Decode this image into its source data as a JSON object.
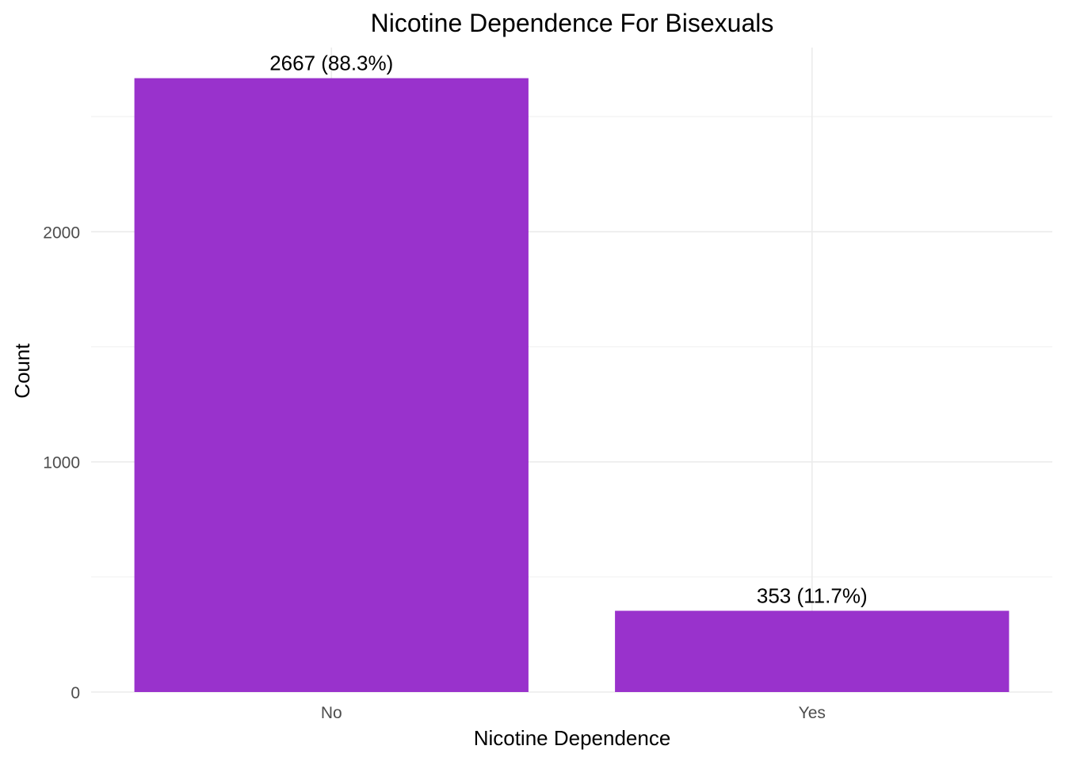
{
  "chart_data": {
    "type": "bar",
    "title": "Nicotine Dependence For Bisexuals",
    "xlabel": "Nicotine Dependence",
    "ylabel": "Count",
    "categories": [
      "No",
      "Yes"
    ],
    "values": [
      2667,
      353
    ],
    "data_labels": [
      "2667 (88.3%)",
      "353 (11.7%)"
    ],
    "ylim": [
      0,
      2800
    ],
    "y_ticks": [
      0,
      1000,
      2000
    ],
    "y_tick_labels": [
      "0",
      "1000",
      "2000"
    ],
    "grid": true,
    "legend": "none",
    "bar_color": "#9932cc"
  }
}
